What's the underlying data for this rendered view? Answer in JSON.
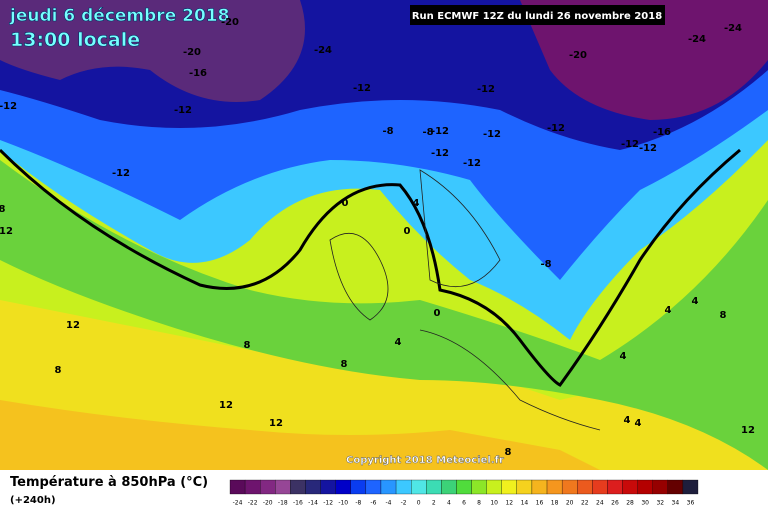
{
  "header": {
    "title": "jeudi 6 décembre 2018",
    "subtitle": "13:00 locale",
    "run": "Run ECMWF 12Z du lundi 26 novembre 2018"
  },
  "copyright": "Copyright 2018 Meteociel.fr",
  "footer": {
    "title": "Température à 850hPa (°C)",
    "lead": "(+240h)"
  },
  "map_labels": [
    -20,
    -20,
    -16,
    -24,
    -12,
    -12,
    -12,
    -12,
    -8,
    -8,
    -12,
    -12,
    -12,
    -12,
    -12,
    -12,
    -12,
    -12,
    -16,
    -20,
    -24,
    -24,
    -8,
    0,
    0,
    4,
    0,
    4,
    8,
    12,
    8,
    12,
    8,
    8,
    12,
    12,
    4,
    8,
    4,
    4,
    4,
    4,
    12,
    8
  ],
  "colorbar": {
    "ticks": [
      -24,
      -22,
      -20,
      -18,
      -16,
      -14,
      -12,
      -10,
      -8,
      -6,
      -4,
      -2,
      0,
      2,
      4,
      6,
      8,
      10,
      12,
      14,
      16,
      18,
      20,
      22,
      24,
      26,
      28,
      30,
      32,
      34,
      36
    ],
    "colors": [
      "#5a0a5a",
      "#6e146e",
      "#822882",
      "#964696",
      "#3c3264",
      "#28287a",
      "#1414a0",
      "#0000c8",
      "#0a3cf0",
      "#1e64ff",
      "#2896ff",
      "#3cc8ff",
      "#50e6e6",
      "#3cdcb4",
      "#3cd278",
      "#50dc3c",
      "#8ce628",
      "#c8f01e",
      "#f0f01e",
      "#f5d21e",
      "#f5b41e",
      "#f5961e",
      "#f0781e",
      "#eb5a1e",
      "#e63c1e",
      "#dc1e1e",
      "#c80a0a",
      "#b40000",
      "#960000",
      "#640000",
      "#1e1e3c"
    ]
  }
}
